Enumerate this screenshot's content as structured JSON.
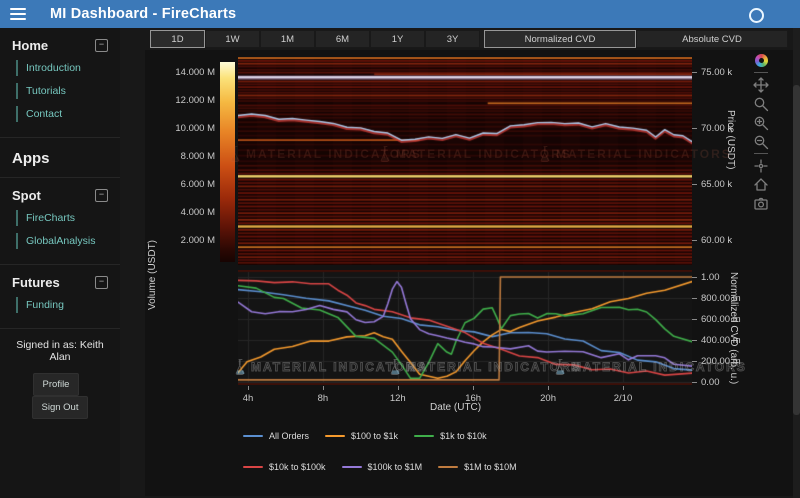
{
  "header": {
    "title": "MI Dashboard - FireCharts"
  },
  "colors": {
    "header_bg": "#3c79b8",
    "sidebar_link": "#76c7bf",
    "figure_bg": "#121212",
    "price_line": "#a9c7e8"
  },
  "sidebar": {
    "sections": [
      {
        "label": "Home",
        "items": [
          {
            "label": "Introduction"
          },
          {
            "label": "Tutorials"
          },
          {
            "label": "Contact"
          }
        ]
      },
      {
        "label": "Apps"
      },
      {
        "label": "Spot",
        "items": [
          {
            "label": "FireCharts"
          },
          {
            "label": "GlobalAnalysis"
          }
        ]
      },
      {
        "label": "Futures",
        "items": [
          {
            "label": "Funding"
          }
        ]
      }
    ],
    "signed_in_text": "Signed in as: Keith Alan",
    "profile_button": "Profile",
    "signout_button": "Sign Out"
  },
  "toolbar": {
    "time_ranges": [
      "1D",
      "1W",
      "1M",
      "6M",
      "1Y",
      "3Y"
    ],
    "active_time_range": "1D",
    "cvd_modes": [
      "Normalized CVD",
      "Absolute CVD"
    ],
    "active_cvd_mode": "Normalized CVD"
  },
  "modebar_icons": [
    "plotly-logo",
    "pan",
    "box-zoom",
    "zoom-in",
    "zoom-out",
    "autoscale",
    "reset-axes",
    "download-plot"
  ],
  "watermark_text": "MATERIAL INDICATORS",
  "chart_data": [
    {
      "type": "heatmap",
      "ylabel_left": "Volume (USDT)",
      "ylabel_right": "Price (USDT)",
      "colorbar_ticks": [
        "14.000 M",
        "12.000 M",
        "10.000 M",
        "8.000 M",
        "6.000 M",
        "4.000 M",
        "2.000 M"
      ],
      "colorbar_range_m": [
        0,
        15000
      ],
      "price_ticks": [
        "75.00 k",
        "70.00 k",
        "65.00 k",
        "60.00 k"
      ],
      "price_tick_values_k": [
        75,
        70,
        65,
        60
      ],
      "price_axis_range_k": [
        57.7,
        76.35
      ],
      "price_line": {
        "name": "Price",
        "x": [
          0,
          0.03,
          0.06,
          0.09,
          0.12,
          0.15,
          0.18,
          0.21,
          0.24,
          0.27,
          0.3,
          0.33,
          0.36,
          0.39,
          0.42,
          0.45,
          0.48,
          0.51,
          0.54,
          0.57,
          0.6,
          0.63,
          0.66,
          0.69,
          0.72,
          0.75,
          0.78,
          0.81,
          0.84,
          0.87,
          0.9,
          0.92,
          0.94,
          0.96,
          0.98,
          1.0
        ],
        "price_k": [
          71.1,
          71.3,
          71.0,
          70.9,
          70.7,
          70.8,
          70.5,
          70.4,
          70.1,
          69.9,
          69.8,
          69.4,
          69.0,
          68.9,
          69.2,
          69.1,
          69.3,
          69.2,
          69.4,
          69.6,
          70.1,
          70.3,
          70.5,
          70.4,
          70.5,
          70.3,
          70.2,
          70.3,
          70.1,
          70.0,
          69.7,
          69.3,
          69.7,
          69.5,
          69.2,
          68.8
        ]
      },
      "volume_levels": [
        {
          "p": 76.25,
          "i": 0.7
        },
        {
          "p": 76.0,
          "i": 0.4
        },
        {
          "p": 75.75,
          "i": 0.5
        },
        {
          "p": 75.5,
          "i": 0.3
        },
        {
          "p": 75.2,
          "i": 0.25
        },
        {
          "p": 74.95,
          "i": 0.35
        },
        {
          "p": 74.8,
          "i": 0.5,
          "x0": 0.3,
          "x1": 1.0
        },
        {
          "p": 74.62,
          "i": 0.45,
          "c": "#7a5878"
        },
        {
          "p": 74.5,
          "i": 1.0,
          "c": "#ded6ea",
          "h": 3
        },
        {
          "p": 74.38,
          "i": 0.4,
          "c": "#64485f"
        },
        {
          "p": 74.15,
          "i": 0.45
        },
        {
          "p": 73.9,
          "i": 0.3
        },
        {
          "p": 73.65,
          "i": 0.4
        },
        {
          "p": 73.4,
          "i": 0.25
        },
        {
          "p": 73.15,
          "i": 0.3
        },
        {
          "p": 72.9,
          "i": 0.5
        },
        {
          "p": 72.65,
          "i": 0.3
        },
        {
          "p": 72.4,
          "i": 0.22
        },
        {
          "p": 72.2,
          "i": 0.7,
          "x0": 0.55,
          "x1": 1.0
        },
        {
          "p": 72.0,
          "i": 0.3
        },
        {
          "p": 71.75,
          "i": 0.25
        },
        {
          "p": 71.5,
          "i": 0.2
        },
        {
          "p": 71.2,
          "i": 0.25
        },
        {
          "p": 70.9,
          "i": 0.18
        },
        {
          "p": 70.5,
          "i": 0.2
        },
        {
          "p": 70.1,
          "i": 0.18
        },
        {
          "p": 69.7,
          "i": 0.2
        },
        {
          "p": 69.3,
          "i": 0.16
        },
        {
          "p": 68.9,
          "i": 0.65,
          "x0": 0.0,
          "x1": 0.4
        },
        {
          "p": 68.5,
          "i": 0.15
        },
        {
          "p": 68.0,
          "i": 0.14
        },
        {
          "p": 67.5,
          "i": 0.16
        },
        {
          "p": 67.0,
          "i": 0.15
        },
        {
          "p": 66.6,
          "i": 0.25
        },
        {
          "p": 66.2,
          "i": 0.3
        },
        {
          "p": 65.9,
          "i": 0.35
        },
        {
          "p": 65.65,
          "i": 0.92
        },
        {
          "p": 65.35,
          "i": 0.4
        },
        {
          "p": 65.05,
          "i": 0.35
        },
        {
          "p": 64.75,
          "i": 0.45
        },
        {
          "p": 64.45,
          "i": 0.3
        },
        {
          "p": 64.15,
          "i": 0.4
        },
        {
          "p": 63.85,
          "i": 0.3
        },
        {
          "p": 63.55,
          "i": 0.45
        },
        {
          "p": 63.25,
          "i": 0.35
        },
        {
          "p": 62.95,
          "i": 0.4
        },
        {
          "p": 62.65,
          "i": 0.3
        },
        {
          "p": 62.35,
          "i": 0.45
        },
        {
          "p": 62.05,
          "i": 0.35
        },
        {
          "p": 61.75,
          "i": 0.5
        },
        {
          "p": 61.45,
          "i": 0.4
        },
        {
          "p": 61.15,
          "i": 0.85
        },
        {
          "p": 60.85,
          "i": 0.45
        },
        {
          "p": 60.55,
          "i": 0.35
        },
        {
          "p": 60.25,
          "i": 0.4
        },
        {
          "p": 59.95,
          "i": 0.3
        },
        {
          "p": 59.65,
          "i": 0.45
        },
        {
          "p": 59.3,
          "i": 0.72
        },
        {
          "p": 59.0,
          "i": 0.4
        },
        {
          "p": 58.7,
          "i": 0.35
        },
        {
          "p": 58.4,
          "i": 0.45
        },
        {
          "p": 58.15,
          "i": 0.3
        },
        {
          "p": 57.9,
          "i": 0.35
        }
      ]
    },
    {
      "type": "line",
      "xlabel": "Date (UTC)",
      "ylabel": "Normalized CVD (arb. u.)",
      "ylim": [
        0,
        1
      ],
      "x_ticks": [
        {
          "label": "4h",
          "f": 0.022
        },
        {
          "label": "8h",
          "f": 0.187
        },
        {
          "label": "12h",
          "f": 0.352
        },
        {
          "label": "16h",
          "f": 0.518
        },
        {
          "label": "20h",
          "f": 0.683
        },
        {
          "label": "2/10",
          "f": 0.848
        }
      ],
      "y_ticks": [
        {
          "label": "1.00",
          "v": 1.0
        },
        {
          "label": "800.00 m",
          "v": 0.8
        },
        {
          "label": "600.00 m",
          "v": 0.6
        },
        {
          "label": "400.00 m",
          "v": 0.4
        },
        {
          "label": "200.00 m",
          "v": 0.2
        },
        {
          "label": "0.00",
          "v": 0.0
        }
      ],
      "series": [
        {
          "name": "All Orders",
          "color": "#5b8fd0",
          "x": [
            0,
            0.05,
            0.1,
            0.15,
            0.2,
            0.25,
            0.28,
            0.32,
            0.36,
            0.4,
            0.44,
            0.48,
            0.52,
            0.56,
            0.6,
            0.64,
            0.68,
            0.72,
            0.76,
            0.8,
            0.84,
            0.88,
            0.92,
            0.96,
            1.0
          ],
          "y": [
            0.88,
            0.86,
            0.83,
            0.8,
            0.77,
            0.72,
            0.68,
            0.63,
            0.6,
            0.55,
            0.52,
            0.5,
            0.47,
            0.44,
            0.46,
            0.48,
            0.45,
            0.42,
            0.38,
            0.31,
            0.27,
            0.22,
            0.18,
            0.14,
            0.1
          ]
        },
        {
          "name": "$100 to $1k",
          "color": "#f59a2d",
          "x": [
            0,
            0.02,
            0.05,
            0.08,
            0.12,
            0.16,
            0.2,
            0.24,
            0.28,
            0.3,
            0.32,
            0.34,
            0.36,
            0.38,
            0.4,
            0.42,
            0.44,
            0.46,
            0.48,
            0.5,
            0.52,
            0.54,
            0.56,
            0.58,
            0.6,
            0.62,
            0.66,
            0.7,
            0.74,
            0.78,
            0.82,
            0.86,
            0.9,
            0.94,
            1.0
          ],
          "y": [
            0.1,
            0.18,
            0.25,
            0.3,
            0.35,
            0.38,
            0.4,
            0.42,
            0.45,
            0.46,
            0.44,
            0.4,
            0.3,
            0.18,
            0.08,
            0.05,
            0.04,
            0.05,
            0.1,
            0.2,
            0.3,
            0.38,
            0.45,
            0.5,
            0.48,
            0.52,
            0.58,
            0.62,
            0.66,
            0.7,
            0.76,
            0.8,
            0.84,
            0.88,
            0.95
          ]
        },
        {
          "name": "$1k to $10k",
          "color": "#3fae4a",
          "x": [
            0,
            0.04,
            0.08,
            0.1,
            0.14,
            0.16,
            0.18,
            0.22,
            0.26,
            0.3,
            0.34,
            0.36,
            0.38,
            0.4,
            0.42,
            0.44,
            0.46,
            0.47,
            0.48,
            0.5,
            0.52,
            0.54,
            0.56,
            0.57,
            0.58,
            0.6,
            0.62,
            0.64,
            0.66,
            0.68,
            0.7,
            0.72,
            0.76,
            0.8,
            0.84,
            0.86,
            0.88,
            0.9,
            0.92,
            0.94,
            0.96,
            1.0
          ],
          "y": [
            0.93,
            0.88,
            0.82,
            0.78,
            0.72,
            0.68,
            0.7,
            0.6,
            0.45,
            0.4,
            0.3,
            0.15,
            0.05,
            0.02,
            0.2,
            0.35,
            0.3,
            0.25,
            0.4,
            0.55,
            0.62,
            0.68,
            0.72,
            0.6,
            0.52,
            0.62,
            0.66,
            0.64,
            0.62,
            0.64,
            0.66,
            0.62,
            0.66,
            0.7,
            0.72,
            0.68,
            0.7,
            0.66,
            0.6,
            0.5,
            0.44,
            0.38
          ]
        },
        {
          "name": "$10k to $100k",
          "color": "#d94545",
          "x": [
            0,
            0.04,
            0.08,
            0.12,
            0.16,
            0.2,
            0.22,
            0.24,
            0.26,
            0.28,
            0.3,
            0.34,
            0.38,
            0.42,
            0.46,
            0.5,
            0.54,
            0.58,
            0.62,
            0.66,
            0.7,
            0.74,
            0.78,
            0.82,
            0.86,
            0.9,
            0.94,
            1.0
          ],
          "y": [
            0.97,
            0.96,
            0.95,
            0.95,
            0.94,
            0.93,
            0.88,
            0.82,
            0.76,
            0.72,
            0.7,
            0.66,
            0.62,
            0.58,
            0.54,
            0.46,
            0.38,
            0.3,
            0.26,
            0.22,
            0.18,
            0.15,
            0.13,
            0.11,
            0.1,
            0.09,
            0.08,
            0.07
          ]
        },
        {
          "name": "$100k to $1M",
          "color": "#9579d8",
          "x": [
            0,
            0.03,
            0.06,
            0.09,
            0.12,
            0.15,
            0.18,
            0.21,
            0.24,
            0.26,
            0.28,
            0.3,
            0.32,
            0.33,
            0.34,
            0.35,
            0.36,
            0.37,
            0.38,
            0.4,
            0.42,
            0.44,
            0.46,
            0.48,
            0.5,
            0.52,
            0.54,
            0.56,
            0.6,
            0.64,
            0.66,
            0.68,
            0.72,
            0.76,
            0.8,
            0.84,
            0.86,
            0.88,
            0.92,
            0.94,
            0.96,
            1.0
          ],
          "y": [
            0.75,
            0.68,
            0.64,
            0.68,
            0.66,
            0.7,
            0.72,
            0.7,
            0.66,
            0.6,
            0.56,
            0.58,
            0.62,
            0.75,
            0.88,
            0.96,
            0.9,
            0.75,
            0.6,
            0.5,
            0.46,
            0.44,
            0.42,
            0.4,
            0.38,
            0.36,
            0.34,
            0.33,
            0.32,
            0.34,
            0.3,
            0.28,
            0.3,
            0.28,
            0.24,
            0.26,
            0.22,
            0.24,
            0.26,
            0.22,
            0.18,
            0.14
          ]
        },
        {
          "name": "$1M to $10M",
          "color": "#bf7b3f",
          "x": [
            0,
            0.575,
            0.578,
            1.0
          ],
          "y": [
            0.02,
            0.02,
            1.0,
            1.0
          ]
        }
      ],
      "legend_rows": [
        [
          0,
          1,
          2
        ],
        [
          3,
          4,
          5
        ]
      ]
    }
  ]
}
